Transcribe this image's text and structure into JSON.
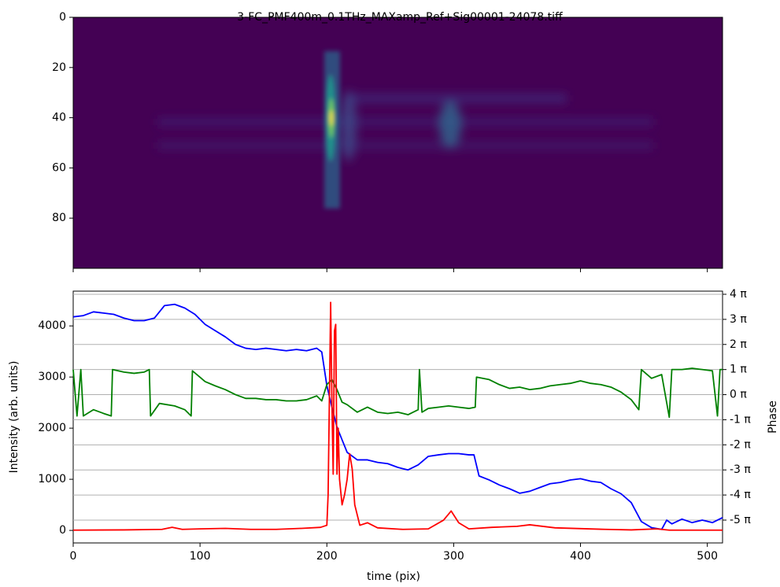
{
  "chart_data": [
    {
      "type": "image",
      "title": "3-FC_PMF400m_0.1THz_MAXamp_Ref+Sig00001-24078.tiff",
      "xlim": [
        0,
        512
      ],
      "xticks": [
        0,
        100,
        200,
        300,
        400,
        500
      ],
      "ylim": [
        100,
        0
      ],
      "yticks": [
        0,
        20,
        40,
        60,
        80
      ]
    },
    {
      "type": "line",
      "xlabel": "time (pix)",
      "ylabel": "Intensity (arb. units)",
      "y2label": "Phase",
      "xlim": [
        0,
        512
      ],
      "xticks": [
        0,
        100,
        200,
        300,
        400,
        500
      ],
      "ylim": [
        -245,
        4680
      ],
      "yticks": [
        0,
        1000,
        2000,
        3000,
        4000
      ],
      "y2lim": [
        -5.91,
        4.125
      ],
      "y2ticks": [
        {
          "value": 4,
          "label": "4 π"
        },
        {
          "value": 3,
          "label": "3 π"
        },
        {
          "value": 2,
          "label": "2 π"
        },
        {
          "value": 1,
          "label": "1 π"
        },
        {
          "value": 0,
          "label": "0 π"
        },
        {
          "value": -1,
          "label": "-1 π"
        },
        {
          "value": -2,
          "label": "-2 π"
        },
        {
          "value": -3,
          "label": "-3 π"
        },
        {
          "value": -4,
          "label": "-4 π"
        },
        {
          "value": -5,
          "label": "-5 π"
        }
      ],
      "grid": "y2",
      "ylabel_color": "#ff0000",
      "y2label_color": "#0000ff",
      "series": [
        {
          "color": "#0000ff",
          "axis": "y2",
          "x": [
            0,
            8,
            16,
            24,
            32,
            40,
            48,
            56,
            64,
            72,
            80,
            88,
            96,
            104,
            112,
            120,
            128,
            136,
            144,
            152,
            160,
            168,
            176,
            184,
            192,
            196,
            200,
            204,
            208,
            212,
            216,
            224,
            232,
            240,
            248,
            256,
            264,
            272,
            280,
            288,
            296,
            304,
            312,
            316,
            320,
            328,
            336,
            344,
            352,
            360,
            368,
            376,
            384,
            392,
            400,
            408,
            416,
            424,
            432,
            440,
            448,
            456,
            464,
            468,
            472,
            480,
            488,
            496,
            504,
            512
          ],
          "values": [
            3.1,
            3.15,
            3.3,
            3.25,
            3.2,
            3.05,
            2.95,
            2.95,
            3.05,
            3.55,
            3.6,
            3.45,
            3.2,
            2.8,
            2.55,
            2.3,
            2.0,
            1.85,
            1.8,
            1.85,
            1.8,
            1.75,
            1.8,
            1.75,
            1.85,
            1.7,
            0.36,
            -0.5,
            -1.3,
            -1.8,
            -2.3,
            -2.6,
            -2.6,
            -2.7,
            -2.75,
            -2.9,
            -3.0,
            -2.8,
            -2.46,
            -2.4,
            -2.35,
            -2.35,
            -2.4,
            -2.4,
            -3.24,
            -3.4,
            -3.6,
            -3.75,
            -3.93,
            -3.85,
            -3.7,
            -3.55,
            -3.5,
            -3.4,
            -3.35,
            -3.45,
            -3.5,
            -3.75,
            -3.95,
            -4.3,
            -5.06,
            -5.3,
            -5.37,
            -5.0,
            -5.15,
            -4.96,
            -5.1,
            -5.0,
            -5.1,
            -4.9
          ]
        },
        {
          "color": "#008000",
          "axis": "y2",
          "x": [
            0,
            3,
            6,
            8,
            16,
            24,
            30,
            31,
            40,
            48,
            56,
            60,
            61,
            68,
            80,
            88,
            93,
            94,
            104,
            112,
            120,
            128,
            136,
            144,
            152,
            160,
            168,
            176,
            184,
            192,
            196,
            200,
            204,
            208,
            212,
            216,
            224,
            232,
            240,
            248,
            256,
            264,
            272,
            273,
            275,
            280,
            288,
            296,
            304,
            312,
            317,
            318,
            328,
            336,
            344,
            352,
            360,
            368,
            376,
            384,
            392,
            400,
            408,
            416,
            424,
            432,
            440,
            446,
            448,
            456,
            464,
            470,
            472,
            480,
            488,
            496,
            504,
            508,
            510,
            512
          ],
          "values": [
            1.0,
            -0.85,
            1.0,
            -0.85,
            -0.6,
            -0.75,
            -0.85,
            1.0,
            0.9,
            0.85,
            0.9,
            1.0,
            -0.85,
            -0.35,
            -0.45,
            -0.6,
            -0.85,
            0.95,
            0.52,
            0.35,
            0.2,
            0.0,
            -0.15,
            -0.15,
            -0.2,
            -0.2,
            -0.25,
            -0.25,
            -0.2,
            -0.05,
            -0.25,
            0.4,
            0.6,
            0.2,
            -0.3,
            -0.4,
            -0.7,
            -0.5,
            -0.7,
            -0.75,
            -0.7,
            -0.8,
            -0.6,
            1.0,
            -0.7,
            -0.55,
            -0.5,
            -0.45,
            -0.5,
            -0.55,
            -0.5,
            0.7,
            0.6,
            0.4,
            0.25,
            0.3,
            0.2,
            0.25,
            0.35,
            0.4,
            0.45,
            0.55,
            0.45,
            0.4,
            0.3,
            0.1,
            -0.2,
            -0.6,
            1.0,
            0.65,
            0.8,
            -0.9,
            1.0,
            1.0,
            1.05,
            1.0,
            0.95,
            -0.85,
            1.0,
            1.0
          ]
        },
        {
          "color": "#ff0000",
          "x": [
            0,
            40,
            70,
            78,
            86,
            100,
            120,
            140,
            160,
            180,
            195,
            200,
            201,
            203,
            204,
            205,
            206,
            207,
            208,
            209,
            210,
            212,
            214,
            216,
            218,
            220,
            222,
            226,
            232,
            240,
            260,
            280,
            292,
            298,
            304,
            312,
            330,
            350,
            360,
            380,
            420,
            440,
            460,
            470,
            512
          ],
          "values": [
            5,
            10,
            20,
            60,
            20,
            30,
            40,
            20,
            20,
            40,
            60,
            100,
            700,
            4460,
            2500,
            1100,
            3900,
            4030,
            1100,
            2000,
            1000,
            500,
            700,
            1000,
            1500,
            1200,
            500,
            100,
            150,
            50,
            20,
            30,
            200,
            380,
            150,
            30,
            60,
            80,
            110,
            50,
            20,
            10,
            30,
            5,
            5
          ]
        }
      ]
    }
  ]
}
